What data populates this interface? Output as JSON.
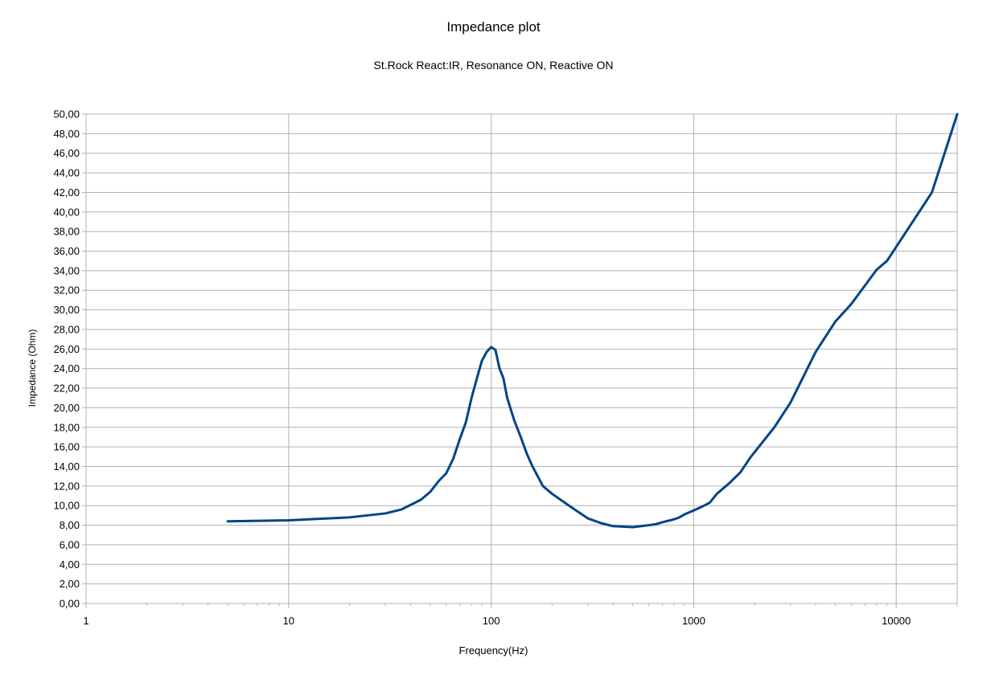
{
  "chart_data": {
    "type": "line",
    "title": "Impedance plot",
    "subtitle": "St.Rock React:IR, Resonance ON, Reactive ON",
    "xlabel": "Frequency(Hz)",
    "ylabel": "Impedance (Ohm)",
    "xscale": "log",
    "xlim": [
      1,
      20000
    ],
    "ylim": [
      0,
      50
    ],
    "x_ticks": [
      1,
      10,
      100,
      1000,
      10000
    ],
    "x_tick_labels": [
      "1",
      "10",
      "100",
      "1000",
      "10000"
    ],
    "y_ticks": [
      0,
      2,
      4,
      6,
      8,
      10,
      12,
      14,
      16,
      18,
      20,
      22,
      24,
      26,
      28,
      30,
      32,
      34,
      36,
      38,
      40,
      42,
      44,
      46,
      48,
      50
    ],
    "y_tick_labels": [
      "0,00",
      "2,00",
      "4,00",
      "6,00",
      "8,00",
      "10,00",
      "12,00",
      "14,00",
      "16,00",
      "18,00",
      "20,00",
      "22,00",
      "24,00",
      "26,00",
      "28,00",
      "30,00",
      "32,00",
      "34,00",
      "36,00",
      "38,00",
      "40,00",
      "42,00",
      "44,00",
      "46,00",
      "48,00",
      "50,00"
    ],
    "grid": true,
    "series": [
      {
        "color": "#004586",
        "x": [
          5,
          10,
          20,
          30,
          36,
          45,
          50,
          55,
          60,
          65,
          70,
          75,
          80,
          85,
          90,
          95,
          100,
          105,
          110,
          115,
          120,
          130,
          140,
          150,
          160,
          180,
          200,
          250,
          300,
          350,
          400,
          500,
          550,
          600,
          650,
          700,
          800,
          850,
          900,
          1000,
          1100,
          1200,
          1300,
          1500,
          1700,
          1900,
          2500,
          3000,
          4000,
          5000,
          6000,
          8000,
          9000,
          15000,
          20000
        ],
        "y": [
          8.4,
          8.5,
          8.8,
          9.2,
          9.6,
          10.6,
          11.4,
          12.5,
          13.3,
          14.8,
          16.8,
          18.5,
          21.0,
          23.0,
          24.8,
          25.7,
          26.2,
          25.9,
          24.0,
          23.0,
          21.0,
          18.7,
          17.0,
          15.3,
          14.0,
          12.0,
          11.2,
          9.8,
          8.7,
          8.2,
          7.9,
          7.8,
          7.9,
          8.0,
          8.1,
          8.3,
          8.6,
          8.8,
          9.1,
          9.5,
          9.9,
          10.3,
          11.2,
          12.3,
          13.4,
          14.9,
          18.0,
          20.5,
          25.7,
          28.8,
          30.6,
          34.1,
          35.0,
          42.0,
          50.0
        ]
      }
    ]
  }
}
